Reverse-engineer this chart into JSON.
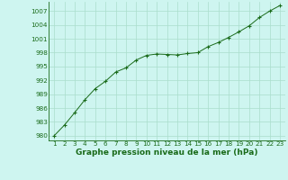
{
  "x": [
    1,
    2,
    3,
    4,
    5,
    6,
    7,
    8,
    9,
    10,
    11,
    12,
    13,
    14,
    15,
    16,
    17,
    18,
    19,
    20,
    21,
    22,
    23
  ],
  "y": [
    980.0,
    982.3,
    985.0,
    987.8,
    990.2,
    991.8,
    993.8,
    994.7,
    996.4,
    997.4,
    997.7,
    997.6,
    997.5,
    997.8,
    998.0,
    999.3,
    1000.2,
    1001.3,
    1002.5,
    1003.8,
    1005.6,
    1007.0,
    1008.2
  ],
  "ylim": [
    979,
    1009
  ],
  "yticks": [
    980,
    983,
    986,
    989,
    992,
    995,
    998,
    1001,
    1004,
    1007
  ],
  "xticks": [
    1,
    2,
    3,
    4,
    5,
    6,
    7,
    8,
    9,
    10,
    11,
    12,
    13,
    14,
    15,
    16,
    17,
    18,
    19,
    20,
    21,
    22,
    23
  ],
  "xlabel": "Graphe pression niveau de la mer (hPa)",
  "line_color": "#1a6b1a",
  "marker": "+",
  "marker_size": 3.0,
  "bg_color": "#cef5f0",
  "grid_color": "#aaddcc",
  "xlabel_fontsize": 6.5,
  "tick_fontsize": 5.2
}
